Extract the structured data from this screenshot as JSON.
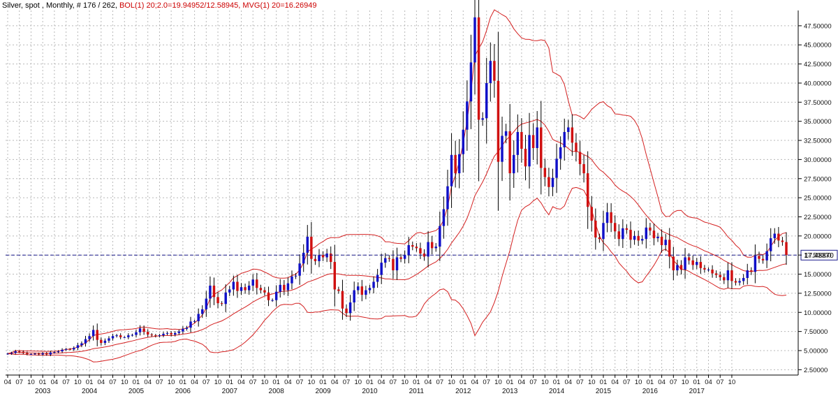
{
  "header": {
    "segments": [
      {
        "text": "Silver, spot , Monthly, # 176 / 262, ",
        "color": "#000000"
      },
      {
        "text": "BOL(1) 20;2.0=19.94952/12.58945, ",
        "color": "#cc0000"
      },
      {
        "text": "MVG(1) 20=16.26949",
        "color": "#cc0000"
      }
    ]
  },
  "colors": {
    "up": "#1010c8",
    "down": "#d01010",
    "wick": "#000000",
    "band": "#d42020",
    "grid": "#b8b8b8",
    "last_line": "#1a1a8c"
  },
  "chart_data": {
    "type": "candlestick",
    "title": "Silver, spot , Monthly, # 176 / 262",
    "ylim": [
      1.8,
      49.5
    ],
    "y_ticks": [
      2.5,
      5,
      7.5,
      10,
      12.5,
      15,
      17.5,
      20,
      22.5,
      25,
      27.5,
      30,
      32.5,
      35,
      37.5,
      40,
      42.5,
      45,
      47.5
    ],
    "y_tick_labels": [
      "2.50000",
      "5.00000",
      "7.50000",
      "10.00000",
      "12.50000",
      "15.00000",
      "17.50000",
      "20.00000",
      "22.50000",
      "25.00000",
      "27.50000",
      "30.00000",
      "32.50000",
      "35.00000",
      "37.50000",
      "40.00000",
      "42.50000",
      "45.00000",
      "47.50000"
    ],
    "last_value": 17.4887,
    "last_value_label": "17.48870",
    "start": {
      "year": 2002,
      "month": 4
    },
    "x_tick_labels": [
      "04",
      "07",
      "10",
      "01",
      "04",
      "07",
      "10",
      "01",
      "04",
      "07",
      "10",
      "01",
      "04",
      "07",
      "10",
      "01",
      "04",
      "07",
      "10",
      "01",
      "04",
      "07",
      "10",
      "01",
      "04",
      "07",
      "10",
      "01",
      "04",
      "07",
      "10",
      "01",
      "04",
      "07",
      "10",
      "01",
      "04",
      "07",
      "10",
      "01",
      "04",
      "07",
      "10",
      "01",
      "04",
      "07",
      "10",
      "01",
      "04",
      "07",
      "10",
      "01",
      "04",
      "07",
      "10",
      "01",
      "04",
      "07",
      "10",
      "01",
      "04",
      "07",
      "10"
    ],
    "year_labels": [
      "2003",
      "2004",
      "2005",
      "2006",
      "2007",
      "2008",
      "2009",
      "2010",
      "2011",
      "2012",
      "2013",
      "2014",
      "2015",
      "2016",
      "2017"
    ],
    "indicators": {
      "bollinger": {
        "period": 20,
        "stddev": 2.0,
        "upper": 19.94952,
        "lower": 12.58945
      },
      "moving_average": {
        "period": 20,
        "value": 16.26949
      }
    },
    "closes": [
      4.6,
      4.7,
      4.9,
      4.85,
      4.7,
      4.55,
      4.55,
      4.6,
      4.5,
      4.65,
      4.5,
      4.75,
      4.8,
      4.9,
      5.1,
      5.2,
      5.15,
      5.35,
      5.7,
      5.95,
      6.5,
      6.9,
      7.7,
      6.4,
      6.0,
      6.3,
      6.6,
      6.9,
      7.0,
      6.75,
      6.75,
      7.0,
      7.05,
      7.4,
      7.9,
      7.45,
      7.1,
      7.0,
      6.9,
      7.0,
      7.2,
      7.3,
      7.1,
      7.3,
      7.5,
      7.85,
      8.0,
      8.8,
      8.85,
      9.8,
      10.4,
      11.8,
      13.5,
      12.0,
      11.2,
      11.1,
      12.6,
      13.0,
      14.0,
      12.8,
      13.3,
      12.9,
      13.5,
      14.3,
      13.2,
      12.9,
      12.6,
      11.6,
      11.6,
      12.7,
      13.6,
      12.9,
      13.8,
      14.7,
      14.8,
      16.4,
      17.8,
      19.9,
      17.0,
      16.7,
      17.5,
      17.2,
      17.7,
      16.6,
      13.0,
      12.8,
      10.5,
      9.9,
      11.3,
      12.9,
      13.4,
      12.3,
      12.9,
      13.2,
      14.0,
      14.9,
      16.5,
      17.1,
      17.0,
      15.5,
      17.2,
      17.0,
      17.5,
      18.8,
      18.6,
      18.4,
      17.7,
      17.3,
      19.2,
      18.4,
      18.6,
      21.3,
      23.5,
      26.5,
      30.6,
      28.2,
      30.7,
      33.9,
      37.6,
      42.7,
      48.6,
      35.2,
      35.4,
      40.0,
      42.9,
      40.3,
      29.7,
      33.1,
      33.7,
      28.2,
      30.6,
      33.6,
      31.4,
      29.1,
      33.2,
      31.5,
      34.2,
      28.9,
      27.7,
      26.4,
      27.6,
      30.1,
      31.6,
      33.6,
      34.2,
      32.2,
      31.0,
      29.4,
      28.2,
      23.8,
      22.0,
      19.8,
      19.6,
      21.7,
      23.1,
      21.7,
      20.6,
      19.6,
      21.0,
      20.8,
      19.5,
      20.0,
      19.4,
      19.6,
      21.1,
      20.7,
      19.7,
      19.9,
      18.8,
      19.5,
      17.3,
      15.5,
      16.2,
      15.6,
      17.2,
      16.8,
      16.2,
      16.6,
      15.8,
      15.6,
      15.6,
      15.1,
      14.9,
      14.6,
      14.2,
      15.5,
      14.1,
      13.9,
      14.1,
      14.5,
      15.5,
      15.3,
      17.4,
      17.0,
      16.8,
      18.0,
      19.7,
      20.3,
      19.4,
      19.2,
      17.5
    ]
  }
}
